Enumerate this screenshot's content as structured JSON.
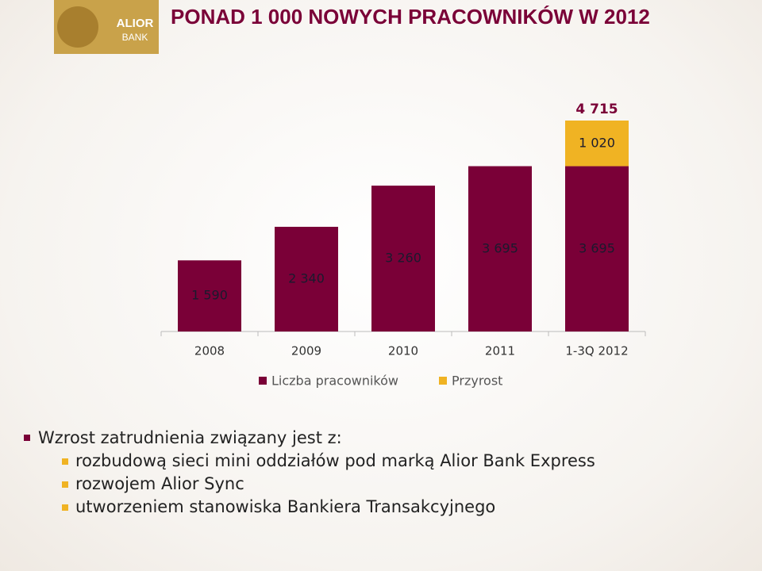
{
  "header": {
    "title": "PONAD 1 000 NOWYCH PRACOWNIKÓW W 2012",
    "logo": [
      "ALIOR",
      "BANK"
    ]
  },
  "chart_data": {
    "type": "stacked_bar",
    "categories": [
      "2008",
      "2009",
      "2010",
      "2011",
      "1-3Q 2012"
    ],
    "series": [
      {
        "name": "Liczba pracowników",
        "color": "#7a0037",
        "values": [
          1590,
          2340,
          3260,
          3695,
          3695
        ],
        "value_labels": [
          "1 590",
          "2 340",
          "3 260",
          "3 695",
          "3 695"
        ]
      },
      {
        "name": "Przyrost",
        "color": "#f0b323",
        "values": [
          null,
          null,
          null,
          null,
          1020
        ],
        "value_labels": [
          null,
          null,
          null,
          null,
          "1 020"
        ]
      }
    ],
    "total_labels": [
      null,
      null,
      null,
      null,
      "4 715"
    ]
  },
  "bullets": {
    "heading": "Wzrost zatrudnienia związany jest z:",
    "items": [
      "rozbudową sieci mini oddziałów pod marką Alior Bank Express",
      "rozwojem Alior Sync",
      "utworzeniem stanowiska Bankiera Transakcyjnego"
    ]
  }
}
